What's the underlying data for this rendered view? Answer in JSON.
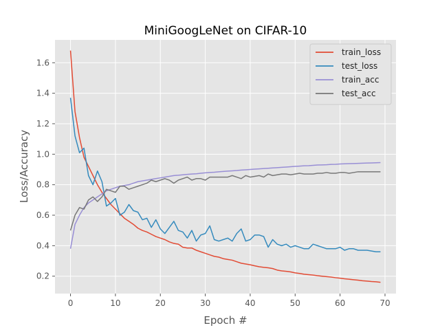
{
  "chart_data": {
    "type": "line",
    "title": "MiniGoogLeNet on CIFAR-10",
    "xlabel": "Epoch #",
    "ylabel": "Loss/Accuracy",
    "xlim": [
      -3.45,
      72.45
    ],
    "ylim": [
      0.086,
      1.75
    ],
    "xticks": [
      0,
      10,
      20,
      30,
      40,
      50,
      60,
      70
    ],
    "yticks": [
      0.2,
      0.4,
      0.6,
      0.8,
      1.0,
      1.2,
      1.4,
      1.6
    ],
    "grid": true,
    "legend_position": "top-right",
    "x": [
      0,
      1,
      2,
      3,
      4,
      5,
      6,
      7,
      8,
      9,
      10,
      11,
      12,
      13,
      14,
      15,
      16,
      17,
      18,
      19,
      20,
      21,
      22,
      23,
      24,
      25,
      26,
      27,
      28,
      29,
      30,
      31,
      32,
      33,
      34,
      35,
      36,
      37,
      38,
      39,
      40,
      41,
      42,
      43,
      44,
      45,
      46,
      47,
      48,
      49,
      50,
      51,
      52,
      53,
      54,
      55,
      56,
      57,
      58,
      59,
      60,
      61,
      62,
      63,
      64,
      65,
      66,
      67,
      68,
      69
    ],
    "series": [
      {
        "name": "train_loss",
        "color": "#E24A33",
        "values": [
          1.68,
          1.28,
          1.11,
          0.98,
          0.92,
          0.86,
          0.8,
          0.75,
          0.71,
          0.67,
          0.64,
          0.61,
          0.58,
          0.56,
          0.54,
          0.515,
          0.5,
          0.49,
          0.475,
          0.46,
          0.45,
          0.44,
          0.425,
          0.415,
          0.41,
          0.39,
          0.385,
          0.385,
          0.37,
          0.36,
          0.35,
          0.34,
          0.33,
          0.325,
          0.315,
          0.31,
          0.305,
          0.295,
          0.285,
          0.28,
          0.275,
          0.268,
          0.262,
          0.258,
          0.255,
          0.25,
          0.24,
          0.235,
          0.232,
          0.228,
          0.222,
          0.218,
          0.213,
          0.21,
          0.207,
          0.203,
          0.2,
          0.197,
          0.194,
          0.19,
          0.187,
          0.183,
          0.18,
          0.177,
          0.174,
          0.17,
          0.168,
          0.165,
          0.163,
          0.16
        ]
      },
      {
        "name": "test_loss",
        "color": "#348ABD",
        "values": [
          1.37,
          1.12,
          1.01,
          1.04,
          0.86,
          0.8,
          0.89,
          0.82,
          0.66,
          0.68,
          0.71,
          0.6,
          0.62,
          0.67,
          0.63,
          0.62,
          0.57,
          0.58,
          0.52,
          0.57,
          0.51,
          0.48,
          0.52,
          0.56,
          0.5,
          0.49,
          0.45,
          0.5,
          0.43,
          0.47,
          0.48,
          0.53,
          0.44,
          0.43,
          0.44,
          0.45,
          0.43,
          0.48,
          0.51,
          0.43,
          0.44,
          0.47,
          0.47,
          0.46,
          0.39,
          0.44,
          0.41,
          0.4,
          0.41,
          0.39,
          0.4,
          0.39,
          0.38,
          0.38,
          0.41,
          0.4,
          0.39,
          0.38,
          0.38,
          0.38,
          0.39,
          0.37,
          0.38,
          0.38,
          0.37,
          0.37,
          0.37,
          0.365,
          0.36,
          0.36
        ]
      },
      {
        "name": "train_acc",
        "color": "#988ED5",
        "values": [
          0.38,
          0.54,
          0.6,
          0.65,
          0.68,
          0.7,
          0.72,
          0.74,
          0.76,
          0.77,
          0.78,
          0.79,
          0.795,
          0.8,
          0.81,
          0.82,
          0.825,
          0.83,
          0.835,
          0.84,
          0.845,
          0.85,
          0.855,
          0.86,
          0.862,
          0.865,
          0.868,
          0.87,
          0.872,
          0.875,
          0.878,
          0.88,
          0.882,
          0.885,
          0.887,
          0.889,
          0.891,
          0.893,
          0.896,
          0.898,
          0.9,
          0.902,
          0.904,
          0.906,
          0.908,
          0.91,
          0.912,
          0.914,
          0.916,
          0.918,
          0.92,
          0.922,
          0.924,
          0.925,
          0.927,
          0.929,
          0.93,
          0.931,
          0.933,
          0.934,
          0.936,
          0.937,
          0.938,
          0.939,
          0.94,
          0.941,
          0.942,
          0.943,
          0.944,
          0.945
        ]
      },
      {
        "name": "test_acc",
        "color": "#777777",
        "values": [
          0.5,
          0.6,
          0.65,
          0.64,
          0.7,
          0.72,
          0.69,
          0.72,
          0.77,
          0.76,
          0.75,
          0.79,
          0.79,
          0.77,
          0.78,
          0.79,
          0.8,
          0.81,
          0.83,
          0.82,
          0.83,
          0.84,
          0.83,
          0.81,
          0.83,
          0.84,
          0.85,
          0.83,
          0.84,
          0.84,
          0.83,
          0.85,
          0.85,
          0.85,
          0.85,
          0.85,
          0.86,
          0.85,
          0.84,
          0.86,
          0.85,
          0.855,
          0.86,
          0.85,
          0.87,
          0.86,
          0.865,
          0.87,
          0.87,
          0.865,
          0.87,
          0.875,
          0.87,
          0.87,
          0.87,
          0.875,
          0.875,
          0.88,
          0.875,
          0.875,
          0.88,
          0.88,
          0.875,
          0.88,
          0.885,
          0.885,
          0.885,
          0.885,
          0.885,
          0.885
        ]
      }
    ]
  }
}
